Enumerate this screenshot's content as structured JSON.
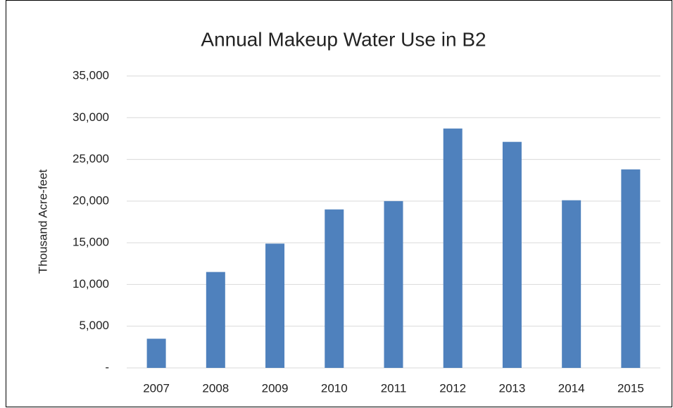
{
  "chart_data": {
    "type": "bar",
    "title": "Annual Makeup Water Use in B2",
    "y_label": "Thousand Acre-feet",
    "categories": [
      "2007",
      "2008",
      "2009",
      "2010",
      "2011",
      "2012",
      "2013",
      "2014",
      "2015"
    ],
    "values": [
      3500,
      11500,
      14900,
      19000,
      20000,
      28700,
      27100,
      20100,
      23800
    ],
    "color": "#4f81bd",
    "ylim": [
      0,
      35000
    ],
    "yticks": [
      {
        "value": 0,
        "label": "-"
      },
      {
        "value": 5000,
        "label": "5,000"
      },
      {
        "value": 10000,
        "label": "10,000"
      },
      {
        "value": 15000,
        "label": "15,000"
      },
      {
        "value": 20000,
        "label": "20,000"
      },
      {
        "value": 25000,
        "label": "25,000"
      },
      {
        "value": 30000,
        "label": "30,000"
      },
      {
        "value": 35000,
        "label": "35,000"
      }
    ],
    "grid": true
  }
}
